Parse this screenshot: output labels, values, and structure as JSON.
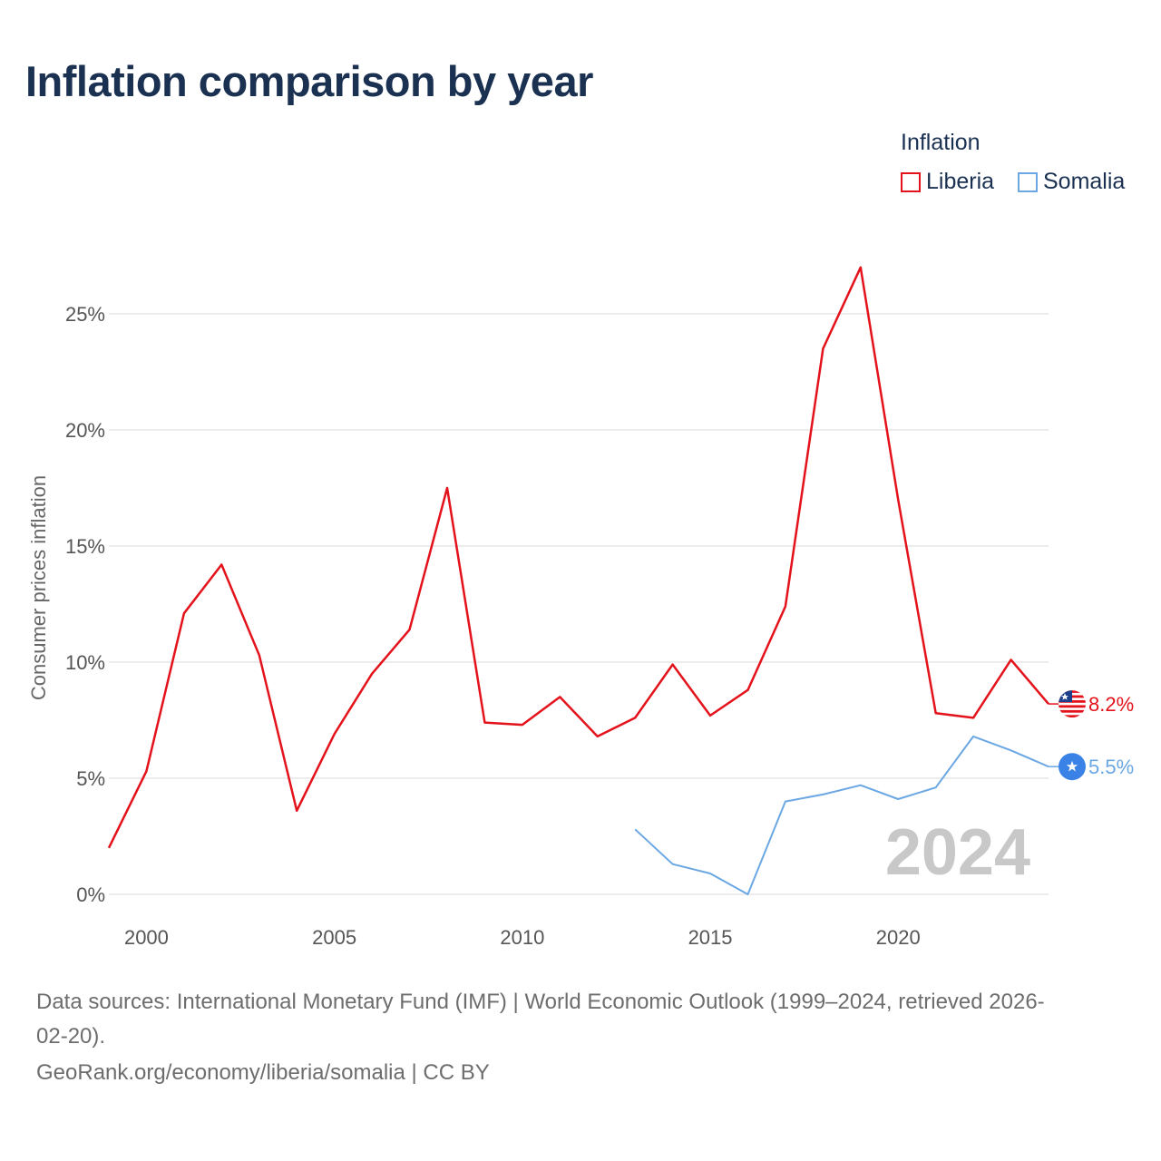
{
  "title": "Inflation comparison by year",
  "legend": {
    "title": "Inflation",
    "items": [
      {
        "label": "Liberia",
        "color": "#e3121b"
      },
      {
        "label": "Somalia",
        "color": "#6aa7e3"
      }
    ]
  },
  "chart_data": {
    "type": "line",
    "title": "Inflation comparison by year",
    "xlabel": "",
    "ylabel": "Consumer prices inflation",
    "xlim": [
      1999,
      2024
    ],
    "ylim": [
      0,
      27
    ],
    "x_ticks": [
      2000,
      2005,
      2010,
      2015,
      2020
    ],
    "x_tick_labels": [
      "2000",
      "2005",
      "2010",
      "2015",
      "2020"
    ],
    "y_ticks": [
      0,
      5,
      10,
      15,
      20,
      25
    ],
    "y_tick_labels": [
      "0%",
      "5%",
      "10%",
      "15%",
      "20%",
      "25%"
    ],
    "grid": true,
    "watermark_year": "2024",
    "series": [
      {
        "name": "Liberia",
        "color": "#e3121b",
        "end_label": "8.2%",
        "flag_icon": "liberia-flag-icon",
        "x": [
          1999,
          2000,
          2001,
          2002,
          2003,
          2004,
          2005,
          2006,
          2007,
          2008,
          2009,
          2010,
          2011,
          2012,
          2013,
          2014,
          2015,
          2016,
          2017,
          2018,
          2019,
          2020,
          2021,
          2022,
          2023,
          2024
        ],
        "values": [
          2.0,
          5.3,
          12.1,
          14.2,
          10.3,
          3.6,
          6.9,
          9.5,
          11.4,
          17.5,
          7.4,
          7.3,
          8.5,
          6.8,
          7.6,
          9.9,
          7.7,
          8.8,
          12.4,
          23.5,
          27.0,
          17.0,
          7.8,
          7.6,
          10.1,
          8.2
        ]
      },
      {
        "name": "Somalia",
        "color": "#6aa7e3",
        "end_label": "5.5%",
        "flag_icon": "somalia-flag-icon",
        "x": [
          2013,
          2014,
          2015,
          2016,
          2017,
          2018,
          2019,
          2020,
          2021,
          2022,
          2023,
          2024
        ],
        "values": [
          2.8,
          1.3,
          0.9,
          0.0,
          4.0,
          4.3,
          4.7,
          4.1,
          4.6,
          6.8,
          6.2,
          5.5
        ]
      }
    ]
  },
  "footer": {
    "line1": "Data sources: International Monetary Fund (IMF) | World Economic Outlook (1999–2024, retrieved 2026-",
    "line2": "02-20).",
    "line3": "GeoRank.org/economy/liberia/somalia | CC BY"
  }
}
